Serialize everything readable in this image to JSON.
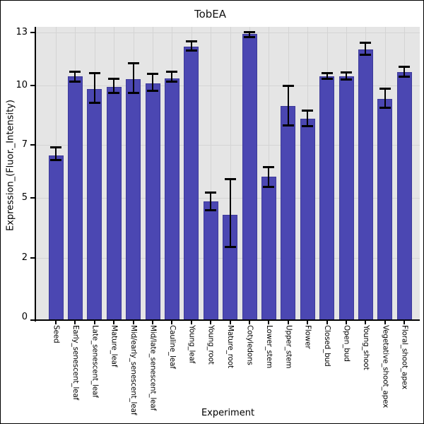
{
  "chart_data": {
    "type": "bar",
    "title": "TobEA",
    "xlabel": "Experiment",
    "ylabel": "Expression_(Fluor._Intensity)",
    "categories": [
      "Seed",
      "Early_senescent_leaf",
      "Late_senescent_leaf",
      "Mature_leaf",
      "Mid/early_senescent_leaf",
      "Mid/late_senescent_leaf",
      "Cauline_leaf",
      "Young_leaf",
      "Young_root",
      "Mature_root",
      "Cotyledons",
      "Lower_stem",
      "Upper_stem",
      "Flower",
      "Closed_bud",
      "Open_bud",
      "Young_shoot",
      "Vegetative_shoot_apex",
      "Floral_shoot_apex"
    ],
    "values": [
      6.6,
      10.5,
      9.8,
      9.9,
      10.35,
      10.1,
      10.4,
      12.2,
      4.8,
      4.15,
      12.9,
      5.8,
      8.95,
      8.3,
      10.5,
      10.5,
      12.05,
      9.3,
      10.75
    ],
    "err_high": [
      6.9,
      10.8,
      10.7,
      10.4,
      11.25,
      10.65,
      10.8,
      12.5,
      5.2,
      5.7,
      13.05,
      6.15,
      10.0,
      8.75,
      10.7,
      10.75,
      12.45,
      9.85,
      11.05
    ],
    "err_low": [
      6.4,
      10.2,
      9.1,
      9.6,
      9.6,
      9.7,
      10.2,
      11.95,
      4.35,
      2.5,
      12.7,
      5.4,
      7.95,
      7.9,
      10.35,
      10.3,
      11.7,
      8.85,
      10.45
    ],
    "yticks": [
      0,
      2,
      5,
      7,
      10,
      13
    ],
    "ylim": [
      0,
      13.3
    ],
    "grid": true,
    "legend": null,
    "colors": {
      "bar_fill": "#4b47b2",
      "bar_edge": "#3d3a99",
      "plot_bg": "#e5e5e5",
      "gridline": "#d4d4d4",
      "error_bar": "#000000",
      "figure_bg": "#ffffff",
      "frame_border": "#000000",
      "text": "#000000"
    }
  }
}
